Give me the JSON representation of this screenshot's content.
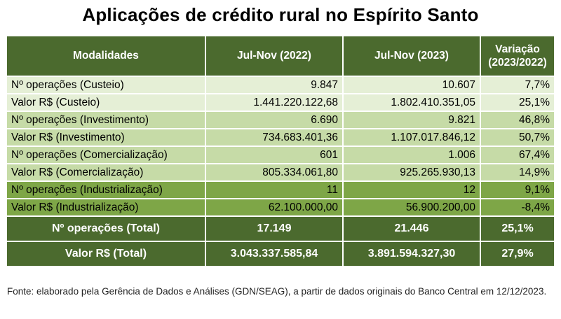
{
  "title": "Aplicações de crédito rural no Espírito Santo",
  "table": {
    "headers": [
      "Modalidades",
      "Jul-Nov (2022)",
      "Jul-Nov (2023)",
      "Variação (2023/2022)"
    ],
    "rows": [
      {
        "label": "Nº operações (Custeio)",
        "v2022": "9.847",
        "v2023": "10.607",
        "variation": "7,7%"
      },
      {
        "label": "Valor R$ (Custeio)",
        "v2022": "1.441.220.122,68",
        "v2023": "1.802.410.351,05",
        "variation": "25,1%"
      },
      {
        "label": "Nº operações (Investimento)",
        "v2022": "6.690",
        "v2023": "9.821",
        "variation": "46,8%"
      },
      {
        "label": "Valor R$ (Investimento)",
        "v2022": "734.683.401,36",
        "v2023": "1.107.017.846,12",
        "variation": "50,7%"
      },
      {
        "label": "Nº operações (Comercialização)",
        "v2022": "601",
        "v2023": "1.006",
        "variation": "67,4%"
      },
      {
        "label": "Valor R$ (Comercialização)",
        "v2022": "805.334.061,80",
        "v2023": "925.265.930,13",
        "variation": "14,9%"
      },
      {
        "label": "Nº operações (Industrialização)",
        "v2022": "11",
        "v2023": "12",
        "variation": "9,1%"
      },
      {
        "label": "Valor R$ (Industrialização)",
        "v2022": "62.100.000,00",
        "v2023": "56.900.200,00",
        "variation": "-8,4%"
      }
    ],
    "totals": [
      {
        "label": "Nº operações (Total)",
        "v2022": "17.149",
        "v2023": "21.446",
        "variation": "25,1%"
      },
      {
        "label": "Valor R$ (Total)",
        "v2022": "3.043.337.585,84",
        "v2023": "3.891.594.327,30",
        "variation": "27,9%"
      }
    ]
  },
  "source": "Fonte: elaborado pela Gerência de Dados e Análises (GDN/SEAG), a partir de dados originais do Banco Central em 12/12/2023.",
  "colors": {
    "header": "#4b6a2e",
    "row_light": "#e5efd6",
    "row_mid": "#c6dba7",
    "row_dark": "#7ea647"
  }
}
